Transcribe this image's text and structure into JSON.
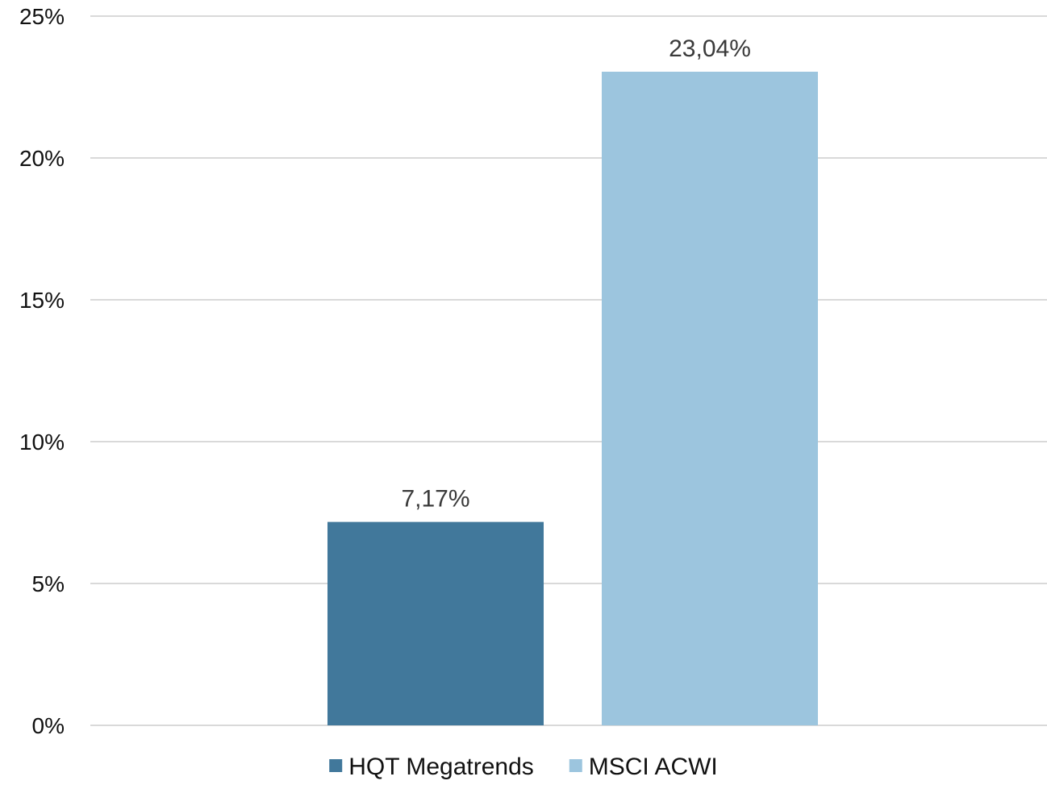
{
  "chart_data": {
    "type": "bar",
    "categories": [
      ""
    ],
    "series": [
      {
        "name": "HQT Megatrends",
        "values": [
          7.17
        ],
        "label": "7,17%",
        "color": "#41789b"
      },
      {
        "name": "MSCI ACWI",
        "values": [
          23.04
        ],
        "label": "23,04%",
        "color": "#9cc5de"
      }
    ],
    "ylim": [
      0,
      25
    ],
    "yticks": [
      0,
      5,
      10,
      15,
      20,
      25
    ],
    "ytick_labels": [
      "0%",
      "5%",
      "10%",
      "15%",
      "20%",
      "25%"
    ],
    "grid": true,
    "legend": "bottom-center",
    "title": "",
    "xlabel": "",
    "ylabel": ""
  }
}
